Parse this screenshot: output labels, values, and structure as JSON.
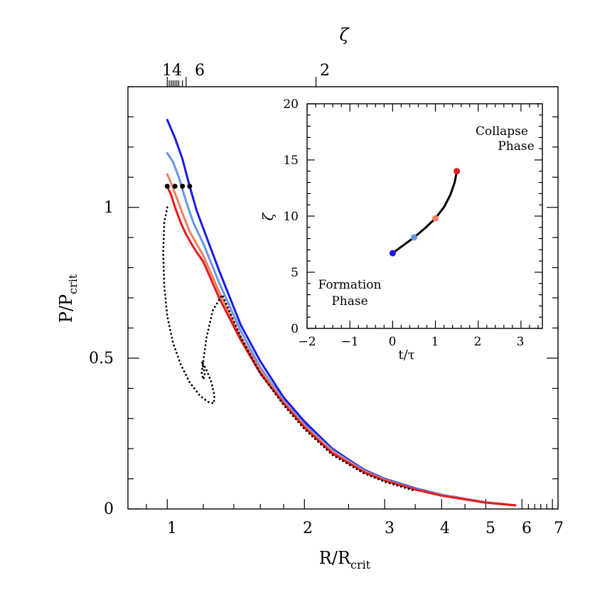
{
  "chart_data": [
    {
      "type": "line",
      "xlabel_main": "R/R",
      "xlabel_sub": "crit",
      "ylabel_main": "P/P",
      "ylabel_sub": "crit",
      "top_axis_label": "ζ",
      "x_scale": "log",
      "xlim": [
        0.82,
        7.2
      ],
      "ylim": [
        0,
        1.4
      ],
      "x_tick_labels": [
        "1",
        "2",
        "3",
        "4",
        "5",
        "6",
        "7"
      ],
      "y_tick_labels": [
        "0",
        "0.5",
        "1"
      ],
      "top_tick_labels": [
        "14",
        "6",
        "2"
      ],
      "colors": {
        "blue": "#1a1ae6",
        "lightblue": "#6496e6",
        "salmon": "#f08060",
        "red": "#e61a1a",
        "black": "#000000"
      },
      "series": [
        {
          "color": "#1a1ae6",
          "style": "solid",
          "x": [
            1.0,
            1.04,
            1.08,
            1.12,
            1.16,
            1.2,
            1.3,
            1.45,
            1.6,
            1.8,
            2.0,
            2.3,
            2.7,
            3.0,
            3.5,
            4.0,
            5.0,
            5.8
          ],
          "y": [
            1.29,
            1.23,
            1.16,
            1.07,
            0.99,
            0.93,
            0.79,
            0.61,
            0.49,
            0.37,
            0.29,
            0.2,
            0.13,
            0.1,
            0.068,
            0.047,
            0.022,
            0.012
          ]
        },
        {
          "color": "#6496e6",
          "style": "solid",
          "x": [
            1.0,
            1.03,
            1.06,
            1.1,
            1.14,
            1.2,
            1.3,
            1.45,
            1.6,
            1.8,
            2.0,
            2.3,
            2.7,
            3.0,
            3.5,
            4.0,
            5.0,
            5.8
          ],
          "y": [
            1.18,
            1.15,
            1.1,
            1.02,
            0.95,
            0.88,
            0.75,
            0.59,
            0.47,
            0.36,
            0.28,
            0.195,
            0.127,
            0.098,
            0.066,
            0.046,
            0.022,
            0.012
          ]
        },
        {
          "color": "#f08060",
          "style": "solid",
          "x": [
            1.0,
            1.02,
            1.05,
            1.08,
            1.12,
            1.2,
            1.3,
            1.45,
            1.6,
            1.8,
            2.0,
            2.3,
            2.7,
            3.0,
            3.5,
            4.0,
            5.0,
            5.8
          ],
          "y": [
            1.11,
            1.08,
            1.03,
            0.98,
            0.92,
            0.84,
            0.72,
            0.57,
            0.46,
            0.355,
            0.275,
            0.19,
            0.125,
            0.096,
            0.065,
            0.045,
            0.021,
            0.012
          ]
        },
        {
          "color": "#e61a1a",
          "style": "solid",
          "x": [
            1.0,
            1.02,
            1.04,
            1.07,
            1.1,
            1.15,
            1.2,
            1.3,
            1.45,
            1.6,
            1.8,
            2.0,
            2.3,
            2.7,
            3.0,
            3.5,
            4.0,
            5.0,
            5.8
          ],
          "y": [
            1.07,
            1.04,
            1.0,
            0.95,
            0.91,
            0.86,
            0.82,
            0.7,
            0.56,
            0.45,
            0.35,
            0.27,
            0.185,
            0.122,
            0.094,
            0.064,
            0.044,
            0.021,
            0.012
          ]
        },
        {
          "color": "#000000",
          "style": "dotted",
          "x": [
            1.0,
            0.985,
            0.98,
            0.985,
            1.0,
            1.03,
            1.07,
            1.12,
            1.18,
            1.23,
            1.265,
            1.27,
            1.25,
            1.22,
            1.195,
            1.19,
            1.2,
            1.21,
            1.2,
            1.19,
            1.2,
            1.22,
            1.26,
            1.32,
            1.45,
            1.6,
            1.8,
            2.0,
            2.3,
            2.7,
            3.0,
            3.5
          ],
          "y": [
            1.0,
            0.95,
            0.85,
            0.74,
            0.64,
            0.55,
            0.48,
            0.42,
            0.375,
            0.355,
            0.35,
            0.375,
            0.42,
            0.46,
            0.485,
            0.49,
            0.47,
            0.45,
            0.43,
            0.45,
            0.49,
            0.57,
            0.66,
            0.71,
            0.57,
            0.45,
            0.345,
            0.265,
            0.18,
            0.118,
            0.09,
            0.06
          ]
        }
      ],
      "markers": {
        "color": "#000000",
        "x": [
          1.0,
          1.04,
          1.08,
          1.12
        ],
        "y": [
          1.07,
          1.07,
          1.07,
          1.07
        ]
      }
    },
    {
      "type": "line",
      "inset": true,
      "xlabel": "t/τ",
      "ylabel": "ζ",
      "xlim": [
        -2,
        3.5
      ],
      "ylim": [
        0,
        20
      ],
      "x_tick_labels": [
        "−2",
        "−1",
        "0",
        "1",
        "2",
        "3"
      ],
      "y_tick_labels": [
        "0",
        "5",
        "10",
        "15",
        "20"
      ],
      "annotations": [
        {
          "text": "Collapse",
          "position": "top-right"
        },
        {
          "text": "Phase",
          "position": "top-right"
        },
        {
          "text": "Formation",
          "position": "bottom-left"
        },
        {
          "text": "Phase",
          "position": "bottom-left"
        }
      ],
      "curve": {
        "color": "#000000",
        "x": [
          0.0,
          0.25,
          0.5,
          0.75,
          1.0,
          1.2,
          1.35,
          1.45,
          1.5
        ],
        "y": [
          6.7,
          7.4,
          8.1,
          8.9,
          9.8,
          10.8,
          11.9,
          13.0,
          14.0
        ]
      },
      "points": [
        {
          "x": 0.0,
          "y": 6.7,
          "color": "#1a1ae6"
        },
        {
          "x": 0.5,
          "y": 8.1,
          "color": "#6496e6"
        },
        {
          "x": 1.0,
          "y": 9.8,
          "color": "#f08060"
        },
        {
          "x": 1.5,
          "y": 14.0,
          "color": "#e61a1a"
        }
      ]
    }
  ]
}
